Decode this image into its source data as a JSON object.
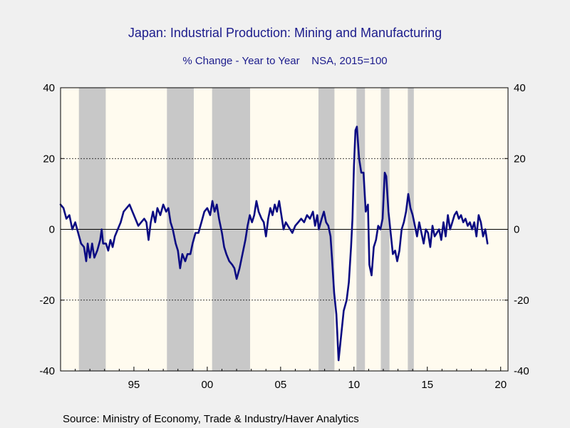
{
  "chart_data": {
    "type": "line",
    "title": "Japan: Industrial Production: Mining and Manufacturing",
    "subtitle": "% Change - Year to Year    NSA, 2015=100",
    "source": "Source:  Ministry of Economy, Trade & Industry/Haver Analytics",
    "xlim": [
      1990.0,
      2020.5
    ],
    "ylim": [
      -40,
      40
    ],
    "y_ticks": [
      40,
      20,
      0,
      -20,
      -40
    ],
    "y_tick_labels": [
      "40",
      "20",
      "0",
      "-20",
      "-40"
    ],
    "x_ticks": [
      1995,
      2000,
      2005,
      2010,
      2015,
      2020
    ],
    "x_tick_labels": [
      "95",
      "00",
      "05",
      "10",
      "15",
      "20"
    ],
    "grid": "horizontal dotted at 20, 0, -20",
    "colors": {
      "line": "#0b0b82",
      "plot_background": "#fffbef",
      "recession_shading": "#c8c8c8",
      "title_text": "#1c1c8c"
    },
    "recessions": [
      [
        1991.25,
        1993.08
      ],
      [
        1997.25,
        1999.08
      ],
      [
        2000.33,
        2002.92
      ],
      [
        2007.58,
        2008.67
      ],
      [
        2010.17,
        2010.75
      ],
      [
        2011.83,
        2012.42
      ],
      [
        2013.67,
        2014.08
      ]
    ],
    "series": [
      {
        "values": [
          [
            1990.0,
            7
          ],
          [
            1990.2,
            6
          ],
          [
            1990.4,
            3
          ],
          [
            1990.6,
            4
          ],
          [
            1990.8,
            0
          ],
          [
            1991.0,
            2
          ],
          [
            1991.2,
            -1
          ],
          [
            1991.4,
            -4
          ],
          [
            1991.6,
            -5
          ],
          [
            1991.75,
            -9
          ],
          [
            1991.85,
            -4
          ],
          [
            1992.0,
            -8
          ],
          [
            1992.15,
            -4
          ],
          [
            1992.3,
            -8
          ],
          [
            1992.5,
            -6
          ],
          [
            1992.7,
            -3
          ],
          [
            1992.8,
            0
          ],
          [
            1992.9,
            -4
          ],
          [
            1993.1,
            -4
          ],
          [
            1993.25,
            -6
          ],
          [
            1993.4,
            -3
          ],
          [
            1993.55,
            -5
          ],
          [
            1993.7,
            -2
          ],
          [
            1993.9,
            0
          ],
          [
            1994.1,
            2
          ],
          [
            1994.3,
            5
          ],
          [
            1994.5,
            6
          ],
          [
            1994.7,
            7
          ],
          [
            1994.9,
            5
          ],
          [
            1995.1,
            3
          ],
          [
            1995.3,
            1
          ],
          [
            1995.5,
            2
          ],
          [
            1995.7,
            3
          ],
          [
            1995.85,
            2
          ],
          [
            1996.0,
            -3
          ],
          [
            1996.15,
            2
          ],
          [
            1996.3,
            5
          ],
          [
            1996.45,
            2
          ],
          [
            1996.6,
            6
          ],
          [
            1996.8,
            4
          ],
          [
            1997.0,
            7
          ],
          [
            1997.2,
            5
          ],
          [
            1997.35,
            6
          ],
          [
            1997.5,
            2
          ],
          [
            1997.65,
            0
          ],
          [
            1997.85,
            -4
          ],
          [
            1998.0,
            -6
          ],
          [
            1998.15,
            -11
          ],
          [
            1998.3,
            -7
          ],
          [
            1998.5,
            -9
          ],
          [
            1998.65,
            -7
          ],
          [
            1998.85,
            -7
          ],
          [
            1999.0,
            -4
          ],
          [
            1999.2,
            -1
          ],
          [
            1999.4,
            -1
          ],
          [
            1999.6,
            2
          ],
          [
            1999.8,
            5
          ],
          [
            2000.0,
            6
          ],
          [
            2000.2,
            4
          ],
          [
            2000.35,
            8
          ],
          [
            2000.5,
            5
          ],
          [
            2000.65,
            7
          ],
          [
            2000.8,
            3
          ],
          [
            2001.0,
            -1
          ],
          [
            2001.15,
            -5
          ],
          [
            2001.3,
            -7
          ],
          [
            2001.5,
            -9
          ],
          [
            2001.7,
            -10
          ],
          [
            2001.85,
            -11
          ],
          [
            2002.0,
            -14
          ],
          [
            2002.2,
            -11
          ],
          [
            2002.4,
            -7
          ],
          [
            2002.6,
            -3
          ],
          [
            2002.75,
            1
          ],
          [
            2002.9,
            4
          ],
          [
            2003.05,
            2
          ],
          [
            2003.2,
            4
          ],
          [
            2003.35,
            8
          ],
          [
            2003.5,
            5
          ],
          [
            2003.7,
            3
          ],
          [
            2003.85,
            2
          ],
          [
            2004.0,
            -2
          ],
          [
            2004.15,
            3
          ],
          [
            2004.3,
            6
          ],
          [
            2004.45,
            4
          ],
          [
            2004.6,
            7
          ],
          [
            2004.75,
            5
          ],
          [
            2004.9,
            8
          ],
          [
            2005.05,
            4
          ],
          [
            2005.2,
            0
          ],
          [
            2005.35,
            2
          ],
          [
            2005.5,
            1
          ],
          [
            2005.65,
            0
          ],
          [
            2005.8,
            -1
          ],
          [
            2006.0,
            1
          ],
          [
            2006.2,
            2
          ],
          [
            2006.4,
            3
          ],
          [
            2006.6,
            2
          ],
          [
            2006.8,
            4
          ],
          [
            2007.0,
            3
          ],
          [
            2007.2,
            5
          ],
          [
            2007.35,
            1
          ],
          [
            2007.5,
            4
          ],
          [
            2007.6,
            0
          ],
          [
            2007.8,
            3
          ],
          [
            2007.95,
            5
          ],
          [
            2008.1,
            2
          ],
          [
            2008.25,
            1
          ],
          [
            2008.4,
            -2
          ],
          [
            2008.5,
            -8
          ],
          [
            2008.65,
            -18
          ],
          [
            2008.8,
            -24
          ],
          [
            2008.95,
            -37
          ],
          [
            2009.1,
            -31
          ],
          [
            2009.3,
            -23
          ],
          [
            2009.5,
            -20
          ],
          [
            2009.65,
            -15
          ],
          [
            2009.8,
            -5
          ],
          [
            2009.9,
            3
          ],
          [
            2010.0,
            18
          ],
          [
            2010.1,
            28
          ],
          [
            2010.2,
            29
          ],
          [
            2010.35,
            20
          ],
          [
            2010.5,
            16
          ],
          [
            2010.65,
            16
          ],
          [
            2010.8,
            5
          ],
          [
            2010.95,
            7
          ],
          [
            2011.05,
            -10
          ],
          [
            2011.2,
            -13
          ],
          [
            2011.35,
            -5
          ],
          [
            2011.5,
            -3
          ],
          [
            2011.65,
            1
          ],
          [
            2011.8,
            0
          ],
          [
            2011.95,
            3
          ],
          [
            2012.1,
            16
          ],
          [
            2012.2,
            15
          ],
          [
            2012.35,
            5
          ],
          [
            2012.5,
            -1
          ],
          [
            2012.65,
            -7
          ],
          [
            2012.8,
            -6
          ],
          [
            2012.95,
            -9
          ],
          [
            2013.1,
            -6
          ],
          [
            2013.25,
            0
          ],
          [
            2013.4,
            2
          ],
          [
            2013.55,
            5
          ],
          [
            2013.7,
            10
          ],
          [
            2013.85,
            6
          ],
          [
            2014.0,
            4
          ],
          [
            2014.15,
            1
          ],
          [
            2014.3,
            -2
          ],
          [
            2014.45,
            2
          ],
          [
            2014.6,
            -1
          ],
          [
            2014.75,
            -4
          ],
          [
            2014.9,
            0
          ],
          [
            2015.05,
            -1
          ],
          [
            2015.2,
            -5
          ],
          [
            2015.35,
            1
          ],
          [
            2015.5,
            -2
          ],
          [
            2015.65,
            -1
          ],
          [
            2015.8,
            0
          ],
          [
            2015.95,
            -3
          ],
          [
            2016.1,
            2
          ],
          [
            2016.25,
            -2
          ],
          [
            2016.4,
            4
          ],
          [
            2016.55,
            0
          ],
          [
            2016.7,
            2
          ],
          [
            2016.85,
            4
          ],
          [
            2017.0,
            5
          ],
          [
            2017.15,
            3
          ],
          [
            2017.3,
            4
          ],
          [
            2017.45,
            2
          ],
          [
            2017.6,
            3
          ],
          [
            2017.75,
            1
          ],
          [
            2017.9,
            2
          ],
          [
            2018.05,
            0
          ],
          [
            2018.2,
            2
          ],
          [
            2018.35,
            -2
          ],
          [
            2018.5,
            4
          ],
          [
            2018.65,
            2
          ],
          [
            2018.8,
            -2
          ],
          [
            2018.95,
            0
          ],
          [
            2019.1,
            -4
          ]
        ]
      }
    ]
  }
}
